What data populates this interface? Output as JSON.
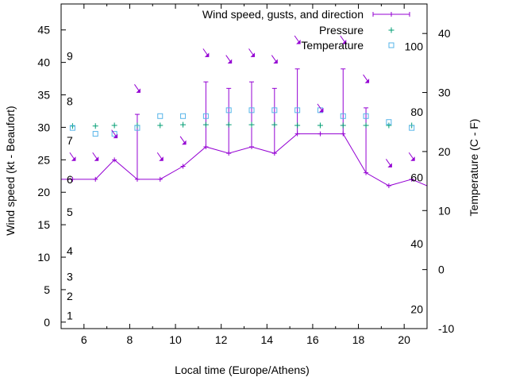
{
  "chart_data": {
    "type": "line",
    "xlabel": "Local time (Europe/Athens)",
    "ylabel": "Wind speed (kt - Beaufort)",
    "y2label": "Temperature (C - F)",
    "xlim": [
      5,
      21
    ],
    "ylim": [
      -1,
      49
    ],
    "y2lim": [
      -10,
      45
    ],
    "grid": false,
    "legend_position": "top-right",
    "x_ticks": [
      6,
      8,
      10,
      12,
      14,
      16,
      18,
      20
    ],
    "y_ticks": [
      0,
      5,
      10,
      15,
      20,
      25,
      30,
      35,
      40,
      45
    ],
    "y2_ticks": [
      -10,
      0,
      10,
      20,
      30,
      40
    ],
    "beaufort_labels": [
      {
        "label": "1",
        "kt": 1
      },
      {
        "label": "2",
        "kt": 4
      },
      {
        "label": "3",
        "kt": 7
      },
      {
        "label": "4",
        "kt": 11
      },
      {
        "label": "5",
        "kt": 17
      },
      {
        "label": "6",
        "kt": 22
      },
      {
        "label": "7",
        "kt": 28
      },
      {
        "label": "8",
        "kt": 34
      },
      {
        "label": "9",
        "kt": 41
      }
    ],
    "fahrenheit_labels": [
      {
        "label": "20",
        "c": -6.7
      },
      {
        "label": "40",
        "c": 4.4
      },
      {
        "label": "60",
        "c": 15.6
      },
      {
        "label": "80",
        "c": 26.7
      },
      {
        "label": "100",
        "c": 37.8
      }
    ],
    "series": [
      {
        "name": "Wind speed, gusts, and direction",
        "color": "#9400d3",
        "x": [
          5.0,
          5.5,
          6.5,
          7.33,
          8.33,
          9.33,
          10.33,
          11.33,
          12.33,
          13.33,
          14.33,
          15.33,
          16.33,
          17.33,
          18.33,
          19.33,
          20.33,
          21.0
        ],
        "values": [
          22,
          22,
          22,
          25,
          22,
          22,
          24,
          27,
          26,
          27,
          26,
          29,
          29,
          29,
          23,
          21,
          22,
          21
        ],
        "gusts": [
          22,
          22,
          22,
          25,
          32,
          22,
          24,
          37,
          36,
          37,
          36,
          39,
          29,
          39,
          33,
          21,
          22,
          21
        ]
      },
      {
        "name": "Pressure",
        "color": "#009e73",
        "x": [
          5.5,
          6.5,
          7.33,
          8.33,
          9.33,
          10.33,
          11.33,
          12.33,
          13.33,
          14.33,
          15.33,
          16.33,
          17.33,
          18.33,
          19.33,
          20.33
        ],
        "values": [
          30.2,
          30.2,
          30.3,
          30.3,
          30.3,
          30.4,
          30.4,
          30.4,
          30.4,
          30.4,
          30.3,
          30.3,
          30.3,
          30.3,
          30.3,
          30.3
        ]
      },
      {
        "name": "Temperature",
        "color": "#56b4e9",
        "x": [
          5.5,
          6.5,
          7.33,
          8.33,
          9.33,
          10.33,
          11.33,
          12.33,
          13.33,
          14.33,
          15.33,
          16.33,
          17.33,
          18.33,
          19.33,
          20.33
        ],
        "values": [
          24,
          23,
          23,
          24,
          26,
          26,
          26,
          27,
          27,
          27,
          27,
          27,
          26,
          26,
          25,
          24
        ]
      }
    ],
    "wind_arrows": [
      {
        "x": 5.5,
        "y": 25.5
      },
      {
        "x": 6.5,
        "y": 25.5
      },
      {
        "x": 7.33,
        "y": 29.0
      },
      {
        "x": 8.33,
        "y": 36.0
      },
      {
        "x": 9.33,
        "y": 25.5
      },
      {
        "x": 10.33,
        "y": 28.0
      },
      {
        "x": 11.33,
        "y": 41.5
      },
      {
        "x": 12.33,
        "y": 40.5
      },
      {
        "x": 13.33,
        "y": 41.5
      },
      {
        "x": 14.33,
        "y": 40.5
      },
      {
        "x": 15.33,
        "y": 43.5
      },
      {
        "x": 16.33,
        "y": 33.0
      },
      {
        "x": 17.33,
        "y": 43.5
      },
      {
        "x": 18.33,
        "y": 37.5
      },
      {
        "x": 19.33,
        "y": 24.5
      },
      {
        "x": 20.33,
        "y": 25.5
      }
    ]
  }
}
